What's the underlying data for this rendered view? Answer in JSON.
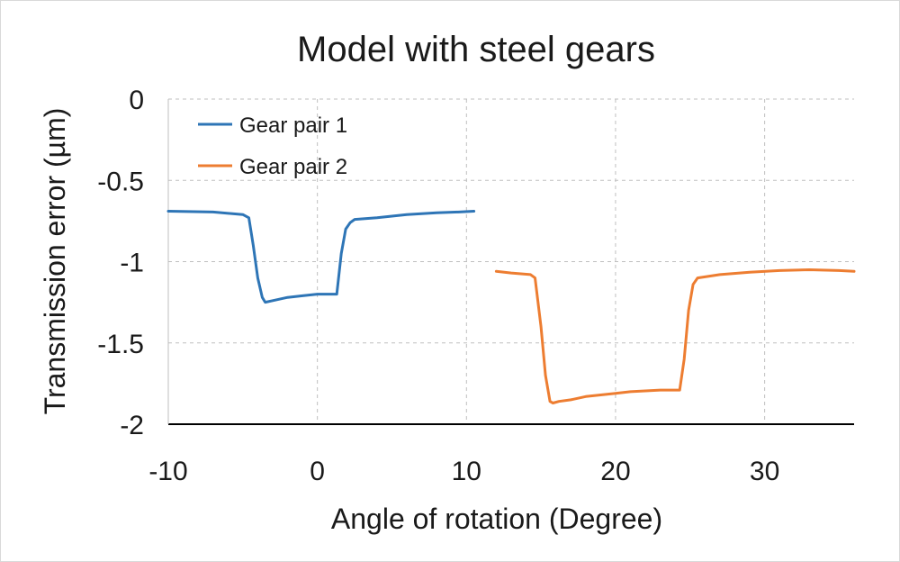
{
  "chart_data": {
    "type": "line",
    "title": "Model with steel gears",
    "xlabel": "Angle of rotation (Degree)",
    "ylabel": "Transmission error (µm)",
    "xlim": [
      -10,
      36
    ],
    "ylim": [
      -2,
      0
    ],
    "xticks": [
      -10,
      0,
      10,
      20,
      30
    ],
    "yticks": [
      0,
      -0.5,
      -1,
      -1.5,
      -2
    ],
    "xtick_labels": [
      "-10",
      "0",
      "10",
      "20",
      "30"
    ],
    "ytick_labels": [
      "0",
      "-0.5",
      "-1",
      "-1.5",
      "-2"
    ],
    "grid": true,
    "legend_position": "top-left",
    "series": [
      {
        "name": "Gear pair 1",
        "color": "#2e75b6",
        "x": [
          -10,
          -7,
          -5,
          -4.6,
          -4.3,
          -4,
          -3.7,
          -3.5,
          -3,
          -2,
          -1,
          0,
          0.5,
          1,
          1.3,
          1.6,
          1.9,
          2.2,
          2.5,
          4,
          6,
          8,
          9.5,
          10.5
        ],
        "y": [
          -0.69,
          -0.695,
          -0.71,
          -0.73,
          -0.9,
          -1.1,
          -1.22,
          -1.25,
          -1.24,
          -1.22,
          -1.21,
          -1.2,
          -1.2,
          -1.2,
          -1.2,
          -0.95,
          -0.8,
          -0.76,
          -0.74,
          -0.73,
          -0.71,
          -0.7,
          -0.695,
          -0.69
        ]
      },
      {
        "name": "Gear pair 2",
        "color": "#ed7d31",
        "x": [
          12,
          13,
          14.3,
          14.6,
          15,
          15.3,
          15.6,
          15.8,
          16.2,
          17,
          18,
          19,
          20,
          21,
          22,
          23,
          24,
          24.3,
          24.6,
          24.9,
          25.2,
          25.5,
          27,
          29,
          31,
          33,
          35,
          36
        ],
        "y": [
          -1.06,
          -1.07,
          -1.08,
          -1.1,
          -1.4,
          -1.7,
          -1.86,
          -1.87,
          -1.86,
          -1.85,
          -1.83,
          -1.82,
          -1.81,
          -1.8,
          -1.795,
          -1.79,
          -1.79,
          -1.79,
          -1.6,
          -1.3,
          -1.14,
          -1.1,
          -1.08,
          -1.065,
          -1.055,
          -1.05,
          -1.055,
          -1.06
        ]
      }
    ]
  }
}
